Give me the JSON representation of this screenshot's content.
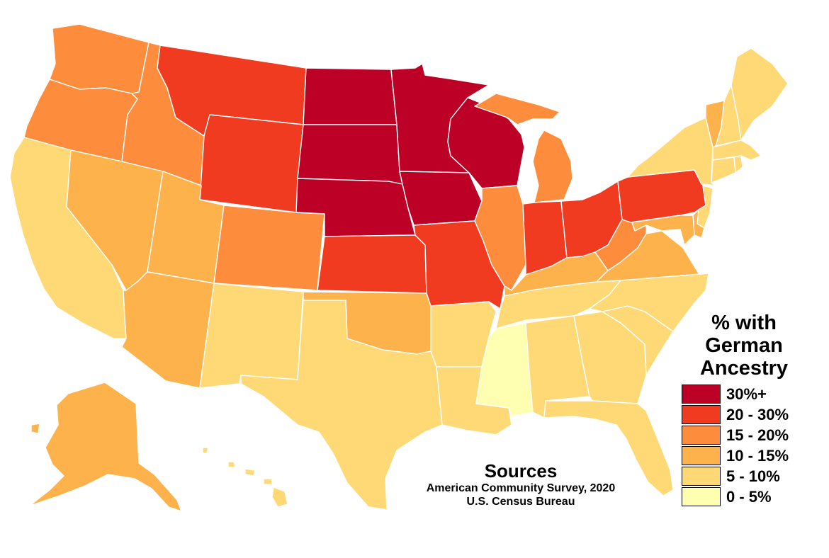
{
  "map": {
    "legend": {
      "title_lines": [
        "% with",
        "German",
        "Ancestry"
      ],
      "bins": [
        {
          "label": "30%+",
          "color": "#bd0026"
        },
        {
          "label": "20 - 30%",
          "color": "#f03b20"
        },
        {
          "label": "15 - 20%",
          "color": "#fd8d3c"
        },
        {
          "label": "10 - 15%",
          "color": "#feb24c"
        },
        {
          "label": "5 - 10%",
          "color": "#fed976"
        },
        {
          "label": "0 - 5%",
          "color": "#ffffb2"
        }
      ]
    },
    "sources": {
      "heading": "Sources",
      "lines": [
        "American Community Survey, 2020",
        "U.S. Census Bureau"
      ]
    },
    "regions": [
      {
        "name": "Washington",
        "bin": 2
      },
      {
        "name": "Oregon",
        "bin": 2
      },
      {
        "name": "California",
        "bin": 4
      },
      {
        "name": "Nevada",
        "bin": 3
      },
      {
        "name": "Idaho",
        "bin": 2
      },
      {
        "name": "Montana",
        "bin": 1
      },
      {
        "name": "Wyoming",
        "bin": 1
      },
      {
        "name": "Utah",
        "bin": 3
      },
      {
        "name": "Arizona",
        "bin": 3
      },
      {
        "name": "Colorado",
        "bin": 2
      },
      {
        "name": "New Mexico",
        "bin": 4
      },
      {
        "name": "North Dakota",
        "bin": 0
      },
      {
        "name": "South Dakota",
        "bin": 0
      },
      {
        "name": "Nebraska",
        "bin": 0
      },
      {
        "name": "Kansas",
        "bin": 1
      },
      {
        "name": "Oklahoma",
        "bin": 3
      },
      {
        "name": "Texas",
        "bin": 4
      },
      {
        "name": "Minnesota",
        "bin": 0
      },
      {
        "name": "Iowa",
        "bin": 0
      },
      {
        "name": "Missouri",
        "bin": 1
      },
      {
        "name": "Arkansas",
        "bin": 4
      },
      {
        "name": "Louisiana",
        "bin": 4
      },
      {
        "name": "Wisconsin",
        "bin": 0
      },
      {
        "name": "Illinois",
        "bin": 2
      },
      {
        "name": "Michigan",
        "bin": 2
      },
      {
        "name": "Indiana",
        "bin": 1
      },
      {
        "name": "Ohio",
        "bin": 1
      },
      {
        "name": "Kentucky",
        "bin": 3
      },
      {
        "name": "Tennessee",
        "bin": 4
      },
      {
        "name": "Mississippi",
        "bin": 5
      },
      {
        "name": "Alabama",
        "bin": 4
      },
      {
        "name": "Georgia",
        "bin": 4
      },
      {
        "name": "Florida",
        "bin": 4
      },
      {
        "name": "South Carolina",
        "bin": 4
      },
      {
        "name": "North Carolina",
        "bin": 4
      },
      {
        "name": "Virginia",
        "bin": 3
      },
      {
        "name": "West Virginia",
        "bin": 2
      },
      {
        "name": "Pennsylvania",
        "bin": 1
      },
      {
        "name": "New York",
        "bin": 4
      },
      {
        "name": "Vermont",
        "bin": 3
      },
      {
        "name": "New Hampshire",
        "bin": 4
      },
      {
        "name": "Maine",
        "bin": 4
      },
      {
        "name": "Massachusetts",
        "bin": 4
      },
      {
        "name": "Connecticut",
        "bin": 4
      },
      {
        "name": "Rhode Island",
        "bin": 4
      },
      {
        "name": "New Jersey",
        "bin": 4
      },
      {
        "name": "Delaware",
        "bin": 3
      },
      {
        "name": "Maryland",
        "bin": 3
      },
      {
        "name": "Alaska",
        "bin": 3
      },
      {
        "name": "Hawaii",
        "bin": 4
      }
    ]
  }
}
